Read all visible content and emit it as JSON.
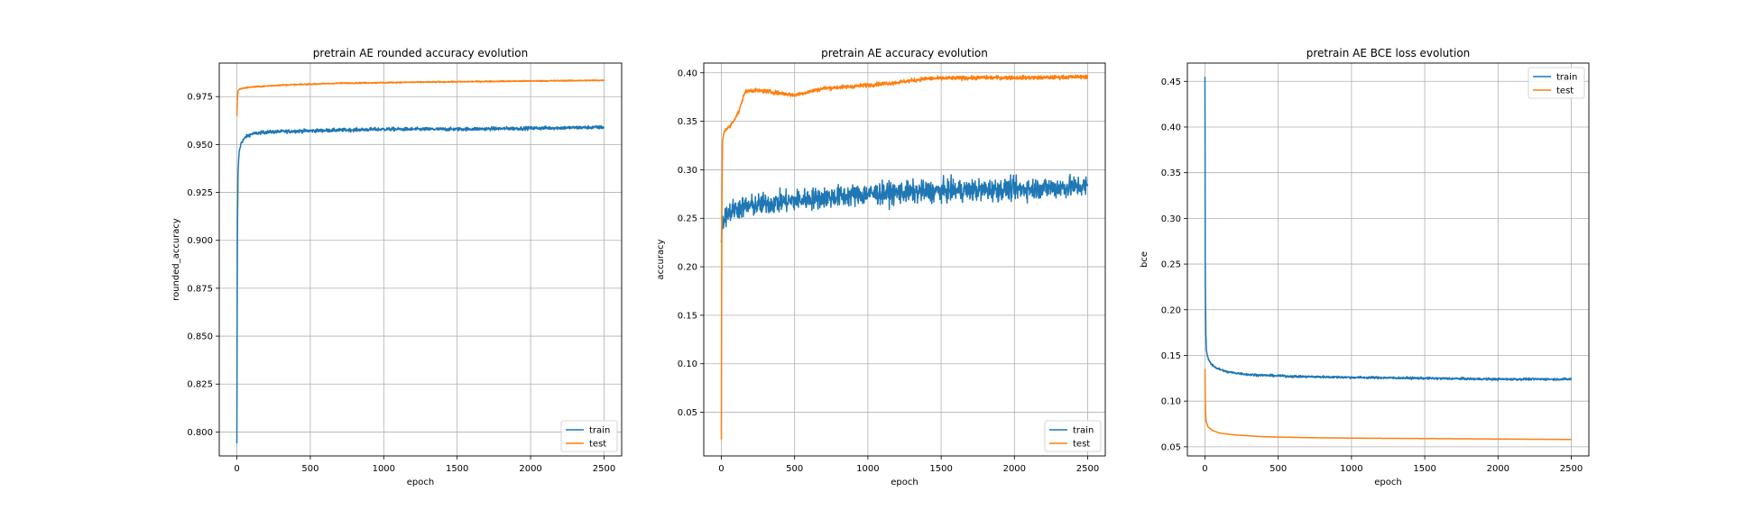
{
  "colors": {
    "train": "#1f77b4",
    "test": "#ff7f0e",
    "grid": "#b0b0b0"
  },
  "chart_data": [
    {
      "type": "line",
      "title": "pretrain AE rounded accuracy evolution",
      "xlabel": "epoch",
      "ylabel": "rounded_accuracy",
      "xlim": [
        -120,
        2620
      ],
      "ylim": [
        0.7875,
        0.9925
      ],
      "xticks": [
        0,
        500,
        1000,
        1500,
        2000,
        2500
      ],
      "yticks": [
        0.8,
        0.825,
        0.85,
        0.875,
        0.9,
        0.925,
        0.95,
        0.975
      ],
      "ytick_labels": [
        "0.800",
        "0.825",
        "0.850",
        "0.875",
        "0.900",
        "0.925",
        "0.950",
        "0.975"
      ],
      "grid": true,
      "legend": "lower right",
      "series": [
        {
          "name": "train",
          "noise": 0.0009,
          "x": [
            0,
            3,
            8,
            15,
            30,
            60,
            100,
            200,
            400,
            700,
            1000,
            1500,
            2000,
            2500
          ],
          "y": [
            0.794,
            0.9,
            0.935,
            0.946,
            0.951,
            0.954,
            0.9555,
            0.9565,
            0.957,
            0.9575,
            0.958,
            0.958,
            0.9585,
            0.959
          ]
        },
        {
          "name": "test",
          "noise": 0.0003,
          "x": [
            0,
            3,
            8,
            20,
            50,
            100,
            300,
            700,
            1200,
            1800,
            2500
          ],
          "y": [
            0.965,
            0.974,
            0.978,
            0.979,
            0.9795,
            0.98,
            0.981,
            0.982,
            0.9825,
            0.983,
            0.9835
          ]
        }
      ]
    },
    {
      "type": "line",
      "title": "pretrain AE accuracy evolution",
      "xlabel": "epoch",
      "ylabel": "accuracy",
      "xlim": [
        -120,
        2620
      ],
      "ylim": [
        0.005,
        0.41
      ],
      "xticks": [
        0,
        500,
        1000,
        1500,
        2000,
        2500
      ],
      "yticks": [
        0.05,
        0.1,
        0.15,
        0.2,
        0.25,
        0.3,
        0.35,
        0.4
      ],
      "ytick_labels": [
        "0.05",
        "0.10",
        "0.15",
        "0.20",
        "0.25",
        "0.30",
        "0.35",
        "0.40"
      ],
      "grid": true,
      "legend": "lower right",
      "series": [
        {
          "name": "train",
          "noise": 0.011,
          "x": [
            0,
            5,
            15,
            40,
            100,
            300,
            600,
            1000,
            1500,
            2000,
            2500
          ],
          "y": [
            0.225,
            0.24,
            0.25,
            0.255,
            0.26,
            0.265,
            0.27,
            0.275,
            0.278,
            0.28,
            0.283
          ]
        },
        {
          "name": "test",
          "noise": 0.002,
          "x": [
            0,
            3,
            8,
            20,
            60,
            120,
            160,
            200,
            300,
            500,
            700,
            900,
            1200,
            1400,
            1800,
            2200,
            2500
          ],
          "y": [
            0.022,
            0.25,
            0.33,
            0.34,
            0.345,
            0.36,
            0.38,
            0.382,
            0.381,
            0.377,
            0.384,
            0.386,
            0.39,
            0.394,
            0.395,
            0.395,
            0.396
          ]
        }
      ]
    },
    {
      "type": "line",
      "title": "pretrain AE BCE loss evolution",
      "xlabel": "epoch",
      "ylabel": "bce",
      "xlim": [
        -120,
        2620
      ],
      "ylim": [
        0.04,
        0.47
      ],
      "xticks": [
        0,
        500,
        1000,
        1500,
        2000,
        2500
      ],
      "yticks": [
        0.05,
        0.1,
        0.15,
        0.2,
        0.25,
        0.3,
        0.35,
        0.4,
        0.45
      ],
      "ytick_labels": [
        "0.05",
        "0.10",
        "0.15",
        "0.20",
        "0.25",
        "0.30",
        "0.35",
        "0.40",
        "0.45"
      ],
      "grid": true,
      "legend": "upper right",
      "series": [
        {
          "name": "train",
          "noise": 0.0012,
          "x": [
            0,
            2,
            5,
            10,
            20,
            40,
            80,
            150,
            300,
            600,
            1000,
            1500,
            2000,
            2500
          ],
          "y": [
            0.455,
            0.25,
            0.18,
            0.155,
            0.147,
            0.141,
            0.136,
            0.132,
            0.129,
            0.127,
            0.126,
            0.125,
            0.124,
            0.124
          ]
        },
        {
          "name": "test",
          "noise": 0.0,
          "x": [
            0,
            3,
            8,
            20,
            50,
            100,
            200,
            400,
            700,
            1000,
            1500,
            2000,
            2500
          ],
          "y": [
            0.135,
            0.09,
            0.078,
            0.072,
            0.068,
            0.065,
            0.063,
            0.061,
            0.06,
            0.0595,
            0.059,
            0.0585,
            0.058
          ]
        }
      ]
    }
  ]
}
